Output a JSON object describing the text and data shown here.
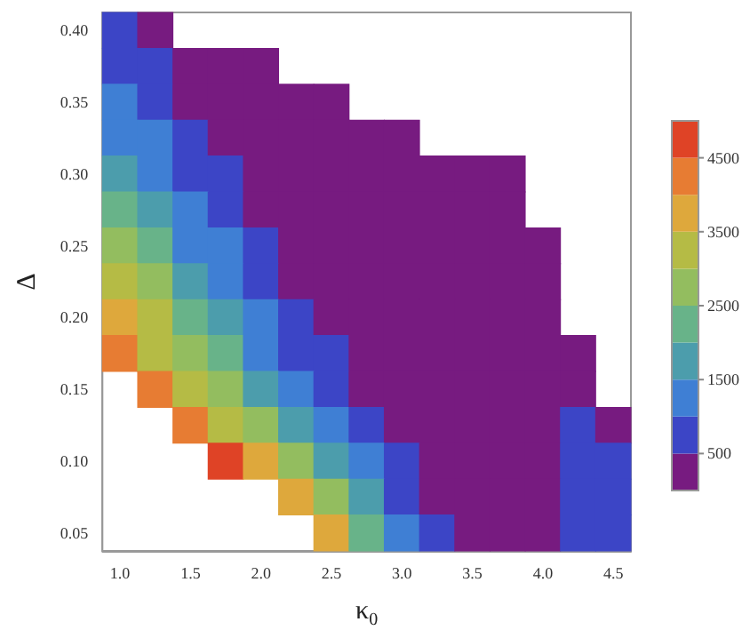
{
  "chart_data": {
    "type": "heatmap",
    "xlabel": "κ$_{0}$",
    "ylabel": "Δ",
    "categories": [
      "1.0",
      null,
      "1.5",
      null,
      "2.0",
      null,
      "2.5",
      null,
      "3.0",
      null,
      "3.5",
      null,
      "4.0",
      null,
      "4.5"
    ],
    "y_categories": [
      "0.40",
      null,
      "0.35",
      null,
      "0.30",
      null,
      "0.25",
      null,
      "0.20",
      null,
      "0.15",
      null,
      "0.10",
      null,
      "0.05"
    ],
    "cells": [
      [
        750,
        250,
        null,
        null,
        null,
        null,
        null,
        null,
        null,
        null,
        null,
        null,
        null,
        null,
        null
      ],
      [
        750,
        750,
        250,
        250,
        250,
        null,
        null,
        null,
        null,
        null,
        null,
        null,
        null,
        null,
        null
      ],
      [
        1250,
        750,
        250,
        250,
        250,
        250,
        250,
        null,
        null,
        null,
        null,
        null,
        null,
        null,
        null
      ],
      [
        1250,
        1250,
        750,
        250,
        250,
        250,
        250,
        250,
        250,
        null,
        null,
        null,
        null,
        null,
        null
      ],
      [
        1750,
        1250,
        750,
        750,
        250,
        250,
        250,
        250,
        250,
        250,
        250,
        250,
        null,
        null,
        null
      ],
      [
        2250,
        1750,
        1250,
        750,
        250,
        250,
        250,
        250,
        250,
        250,
        250,
        250,
        null,
        null,
        null
      ],
      [
        2750,
        2250,
        1250,
        1250,
        750,
        250,
        250,
        250,
        250,
        250,
        250,
        250,
        250,
        null,
        null
      ],
      [
        3250,
        2750,
        1750,
        1250,
        750,
        250,
        250,
        250,
        250,
        250,
        250,
        250,
        250,
        null,
        null
      ],
      [
        3750,
        3250,
        2250,
        1750,
        1250,
        750,
        250,
        250,
        250,
        250,
        250,
        250,
        250,
        null,
        null
      ],
      [
        4250,
        3250,
        2750,
        2250,
        1250,
        750,
        750,
        250,
        250,
        250,
        250,
        250,
        250,
        250,
        null
      ],
      [
        null,
        4250,
        3250,
        2750,
        1750,
        1250,
        750,
        250,
        250,
        250,
        250,
        250,
        250,
        250,
        null
      ],
      [
        null,
        null,
        4250,
        3250,
        2750,
        1750,
        1250,
        750,
        250,
        250,
        250,
        250,
        250,
        750,
        250
      ],
      [
        null,
        null,
        null,
        4750,
        3750,
        2750,
        1750,
        1250,
        750,
        250,
        250,
        250,
        250,
        750,
        750
      ],
      [
        null,
        null,
        null,
        null,
        null,
        3750,
        2750,
        1750,
        750,
        250,
        250,
        250,
        250,
        750,
        750
      ],
      [
        null,
        null,
        null,
        null,
        null,
        null,
        3750,
        2250,
        1250,
        750,
        250,
        250,
        250,
        750,
        750
      ]
    ],
    "clim": [
      0,
      5000
    ],
    "cticks": [
      500,
      1500,
      2500,
      3500,
      4500
    ]
  }
}
